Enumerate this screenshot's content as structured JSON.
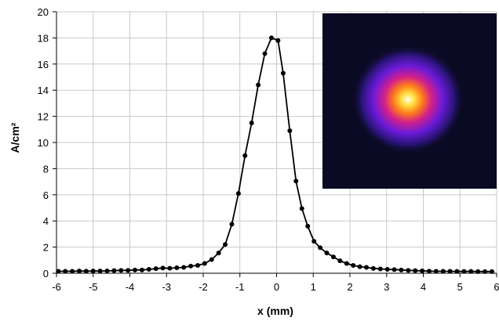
{
  "chart_data": {
    "type": "line",
    "title": "",
    "xlabel": "x (mm)",
    "ylabel": "A/cm²",
    "xlim": [
      -6,
      6
    ],
    "ylim": [
      0,
      20
    ],
    "x_ticks": [
      -6,
      -5,
      -4,
      -3,
      -2,
      -1,
      0,
      1,
      2,
      3,
      4,
      5,
      6
    ],
    "y_ticks": [
      0,
      2,
      4,
      6,
      8,
      10,
      12,
      14,
      16,
      18,
      20
    ],
    "grid": true,
    "legend": "none",
    "series": [
      {
        "color": "#000000",
        "marker": "circle",
        "x": [
          -5.95,
          -5.76,
          -5.57,
          -5.38,
          -5.19,
          -5.0,
          -4.81,
          -4.62,
          -4.43,
          -4.24,
          -4.05,
          -3.86,
          -3.67,
          -3.48,
          -3.29,
          -3.1,
          -2.91,
          -2.72,
          -2.53,
          -2.34,
          -2.15,
          -1.96,
          -1.77,
          -1.58,
          -1.4,
          -1.22,
          -1.04,
          -0.86,
          -0.68,
          -0.5,
          -0.32,
          -0.14,
          0.04,
          0.18,
          0.36,
          0.53,
          0.69,
          0.85,
          1.02,
          1.19,
          1.37,
          1.55,
          1.73,
          1.91,
          2.09,
          2.27,
          2.45,
          2.64,
          2.83,
          3.02,
          3.21,
          3.4,
          3.59,
          3.78,
          3.97,
          4.16,
          4.35,
          4.54,
          4.73,
          4.92,
          5.11,
          5.3,
          5.49,
          5.68,
          5.87
        ],
        "y": [
          0.15,
          0.15,
          0.15,
          0.17,
          0.16,
          0.17,
          0.17,
          0.18,
          0.2,
          0.22,
          0.22,
          0.25,
          0.25,
          0.3,
          0.35,
          0.4,
          0.38,
          0.42,
          0.45,
          0.55,
          0.6,
          0.75,
          1.05,
          1.55,
          2.2,
          3.75,
          6.1,
          9.0,
          11.5,
          14.4,
          16.8,
          18.0,
          17.8,
          15.3,
          10.9,
          7.05,
          4.95,
          3.6,
          2.45,
          1.95,
          1.55,
          1.25,
          0.95,
          0.75,
          0.6,
          0.5,
          0.45,
          0.37,
          0.33,
          0.3,
          0.28,
          0.25,
          0.22,
          0.2,
          0.18,
          0.16,
          0.15,
          0.15,
          0.15,
          0.14,
          0.14,
          0.14,
          0.13,
          0.13,
          0.13
        ]
      }
    ]
  },
  "colors": {
    "series_line": "#000000",
    "grid": "#c8c8c8",
    "inset_background": "#0a0a24"
  }
}
